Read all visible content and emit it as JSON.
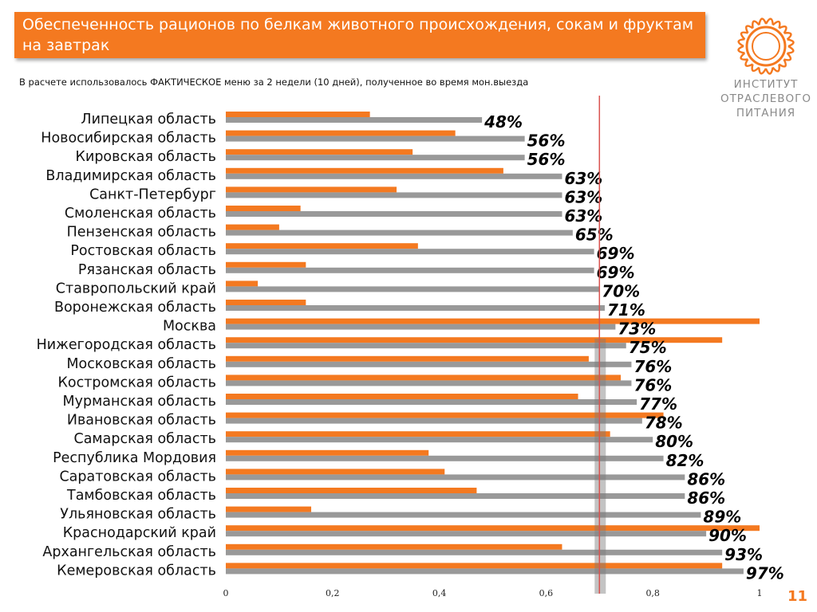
{
  "header": {
    "title": "Обеспеченность рационов по белкам животного происхождения, сокам и фруктам на завтрак",
    "subtitle": "В расчете использовалось ФАКТИЧЕСКОЕ меню за 2 недели (10 дней), полученное во время мон.выезда"
  },
  "logo": {
    "line1": "ИНСТИТУТ",
    "line2": "ОТРАСЛЕВОГО",
    "line3": "ПИТАНИЯ"
  },
  "page_number": "11",
  "colors": {
    "accent": "#f47920",
    "gray_bar": "#999999",
    "threshold": "#d9534f"
  },
  "chart_data": {
    "type": "bar",
    "orientation": "horizontal",
    "categories": [
      "Липецкая область",
      "Новосибирская область",
      "Кировская область",
      "Владимирская область",
      "Санкт-Петербург",
      "Смоленская область",
      "Пензенская область",
      "Ростовская область",
      "Рязанская область",
      "Ставропольский край",
      "Воронежская область",
      "Москва",
      "Нижегородская область",
      "Московская область",
      "Костромская область",
      "Мурманская область",
      "Ивановская область",
      "Самарская область",
      "Республика Мордовия",
      "Саратовская область",
      "Тамбовская область",
      "Ульяновская область",
      "Краснодарский край",
      "Архангельская область",
      "Кемеровская область"
    ],
    "series": [
      {
        "color": "#f47920",
        "values": [
          0.27,
          0.43,
          0.35,
          0.52,
          0.32,
          0.14,
          0.1,
          0.36,
          0.15,
          0.06,
          0.15,
          1.0,
          0.93,
          0.68,
          0.74,
          0.66,
          0.82,
          0.72,
          0.38,
          0.41,
          0.47,
          0.16,
          1.0,
          0.63,
          0.93
        ]
      },
      {
        "color": "#999999",
        "values": [
          0.48,
          0.56,
          0.56,
          0.63,
          0.63,
          0.63,
          0.65,
          0.69,
          0.69,
          0.7,
          0.71,
          0.73,
          0.75,
          0.76,
          0.76,
          0.77,
          0.78,
          0.8,
          0.82,
          0.86,
          0.86,
          0.89,
          0.9,
          0.93,
          0.97
        ]
      }
    ],
    "data_labels": [
      "48%",
      "56%",
      "56%",
      "63%",
      "63%",
      "63%",
      "65%",
      "69%",
      "69%",
      "70%",
      "71%",
      "73%",
      "75%",
      "76%",
      "76%",
      "77%",
      "78%",
      "80%",
      "82%",
      "86%",
      "86%",
      "89%",
      "90%",
      "93%",
      "97%"
    ],
    "xticks": [
      "0",
      "0,2",
      "0,4",
      "0,6",
      "0,8",
      "1"
    ],
    "xlim": [
      0,
      1
    ],
    "threshold": 0.7,
    "legend": "none",
    "grid": false
  }
}
